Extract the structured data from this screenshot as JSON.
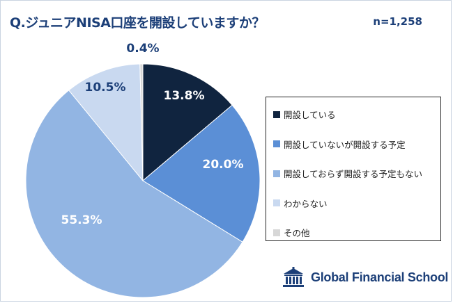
{
  "title": "Q.ジュニアNISA口座を開設していますか？",
  "sample_size": "n=1,258",
  "brand": {
    "name": "Global Financial School",
    "logo_icon": "school-building-icon"
  },
  "chart_data": {
    "type": "pie",
    "start_angle_deg": 0,
    "direction": "clockwise",
    "categories": [
      "開設している",
      "開設していないが開設する予定",
      "開設しておらず開設する予定もない",
      "わからない",
      "その他"
    ],
    "values": [
      13.8,
      20.0,
      55.3,
      10.5,
      0.4
    ],
    "data_labels": [
      "13.8%",
      "20.0%",
      "55.3%",
      "10.5%",
      "0.4%"
    ],
    "colors": [
      "#10243f",
      "#5b8fd6",
      "#92b5e3",
      "#c9d9f0",
      "#d7d7d7"
    ],
    "label_colors": [
      "#ffffff",
      "#ffffff",
      "#ffffff",
      "#1c3f78",
      "#1c3f78"
    ],
    "legend_position": "right"
  }
}
